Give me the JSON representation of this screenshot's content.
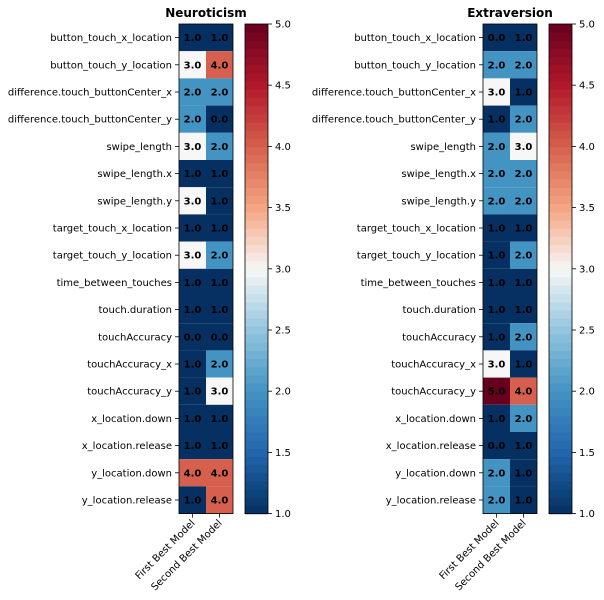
{
  "chart_data": [
    {
      "type": "heatmap",
      "title": "Neuroticism",
      "rows": [
        "button_touch_x_location",
        "button_touch_y_location",
        "difference.touch_buttonCenter_x",
        "difference.touch_buttonCenter_y",
        "swipe_length",
        "swipe_length.x",
        "swipe_length.y",
        "target_touch_x_location",
        "target_touch_y_location",
        "time_between_touches",
        "touch.duration",
        "touchAccuracy",
        "touchAccuracy_x",
        "touchAccuracy_y",
        "x_location.down",
        "x_location.release",
        "y_location.down",
        "y_location.release"
      ],
      "columns": [
        "First Best Model",
        "Second Best Model"
      ],
      "values": [
        [
          1,
          1
        ],
        [
          3,
          4
        ],
        [
          2,
          2
        ],
        [
          2,
          0
        ],
        [
          3,
          2
        ],
        [
          1,
          1
        ],
        [
          3,
          1
        ],
        [
          1,
          1
        ],
        [
          3,
          2
        ],
        [
          1,
          1
        ],
        [
          1,
          1
        ],
        [
          0,
          0
        ],
        [
          1,
          2
        ],
        [
          1,
          3
        ],
        [
          1,
          1
        ],
        [
          1,
          1
        ],
        [
          4,
          4
        ],
        [
          1,
          4
        ]
      ],
      "labels": [
        [
          "1.0",
          "1.0"
        ],
        [
          "3.0",
          "4.0"
        ],
        [
          "2.0",
          "2.0"
        ],
        [
          "2.0",
          "0.0"
        ],
        [
          "3.0",
          "2.0"
        ],
        [
          "1.0",
          "1.0"
        ],
        [
          "3.0",
          "1.0"
        ],
        [
          "1.0",
          "1.0"
        ],
        [
          "3.0",
          "2.0"
        ],
        [
          "1.0",
          "1.0"
        ],
        [
          "1.0",
          "1.0"
        ],
        [
          "0.0",
          "0.0"
        ],
        [
          "1.0",
          "2.0"
        ],
        [
          "1.0",
          "3.0"
        ],
        [
          "1.0",
          "1.0"
        ],
        [
          "1.0",
          "1.0"
        ],
        [
          "4.0",
          "4.0"
        ],
        [
          "1.0",
          "4.0"
        ]
      ],
      "colormap": "RdBu_r",
      "colorbar": {
        "range": [
          1,
          5
        ],
        "ticks": [
          "1.0",
          "1.5",
          "2.0",
          "2.5",
          "3.0",
          "3.5",
          "4.0",
          "4.5",
          "5.0"
        ]
      }
    },
    {
      "type": "heatmap",
      "title": "Extraversion",
      "rows": [
        "button_touch_x_location",
        "button_touch_y_location",
        "difference.touch_buttonCenter_x",
        "difference.touch_buttonCenter_y",
        "swipe_length",
        "swipe_length.x",
        "swipe_length.y",
        "target_touch_x_location",
        "target_touch_y_location",
        "time_between_touches",
        "touch.duration",
        "touchAccuracy",
        "touchAccuracy_x",
        "touchAccuracy_y",
        "x_location.down",
        "x_location.release",
        "y_location.down",
        "y_location.release"
      ],
      "columns": [
        "First Best Model",
        "Second Best Model"
      ],
      "values": [
        [
          0,
          1
        ],
        [
          2,
          2
        ],
        [
          3,
          1
        ],
        [
          1,
          2
        ],
        [
          2,
          3
        ],
        [
          2,
          2
        ],
        [
          2,
          2
        ],
        [
          1,
          1
        ],
        [
          1,
          2
        ],
        [
          1,
          1
        ],
        [
          1,
          1
        ],
        [
          1,
          2
        ],
        [
          3,
          1
        ],
        [
          5,
          4
        ],
        [
          1,
          2
        ],
        [
          0,
          1
        ],
        [
          2,
          1
        ],
        [
          2,
          1
        ]
      ],
      "labels": [
        [
          "0.0",
          "1.0"
        ],
        [
          "2.0",
          "2.0"
        ],
        [
          "3.0",
          "1.0"
        ],
        [
          "1.0",
          "2.0"
        ],
        [
          "2.0",
          "3.0"
        ],
        [
          "2.0",
          "2.0"
        ],
        [
          "2.0",
          "2.0"
        ],
        [
          "1.0",
          "1.0"
        ],
        [
          "1.0",
          "2.0"
        ],
        [
          "1.0",
          "1.0"
        ],
        [
          "1.0",
          "1.0"
        ],
        [
          "1.0",
          "2.0"
        ],
        [
          "3.0",
          "1.0"
        ],
        [
          "5.0",
          "4.0"
        ],
        [
          "1.0",
          "2.0"
        ],
        [
          "0.0",
          "1.0"
        ],
        [
          "2.0",
          "1.0"
        ],
        [
          "2.0",
          "1.0"
        ]
      ],
      "colormap": "RdBu_r",
      "colorbar": {
        "range": [
          1,
          5
        ],
        "ticks": [
          "1.0",
          "1.5",
          "2.0",
          "2.5",
          "3.0",
          "3.5",
          "4.0",
          "4.5",
          "5.0"
        ]
      }
    }
  ]
}
